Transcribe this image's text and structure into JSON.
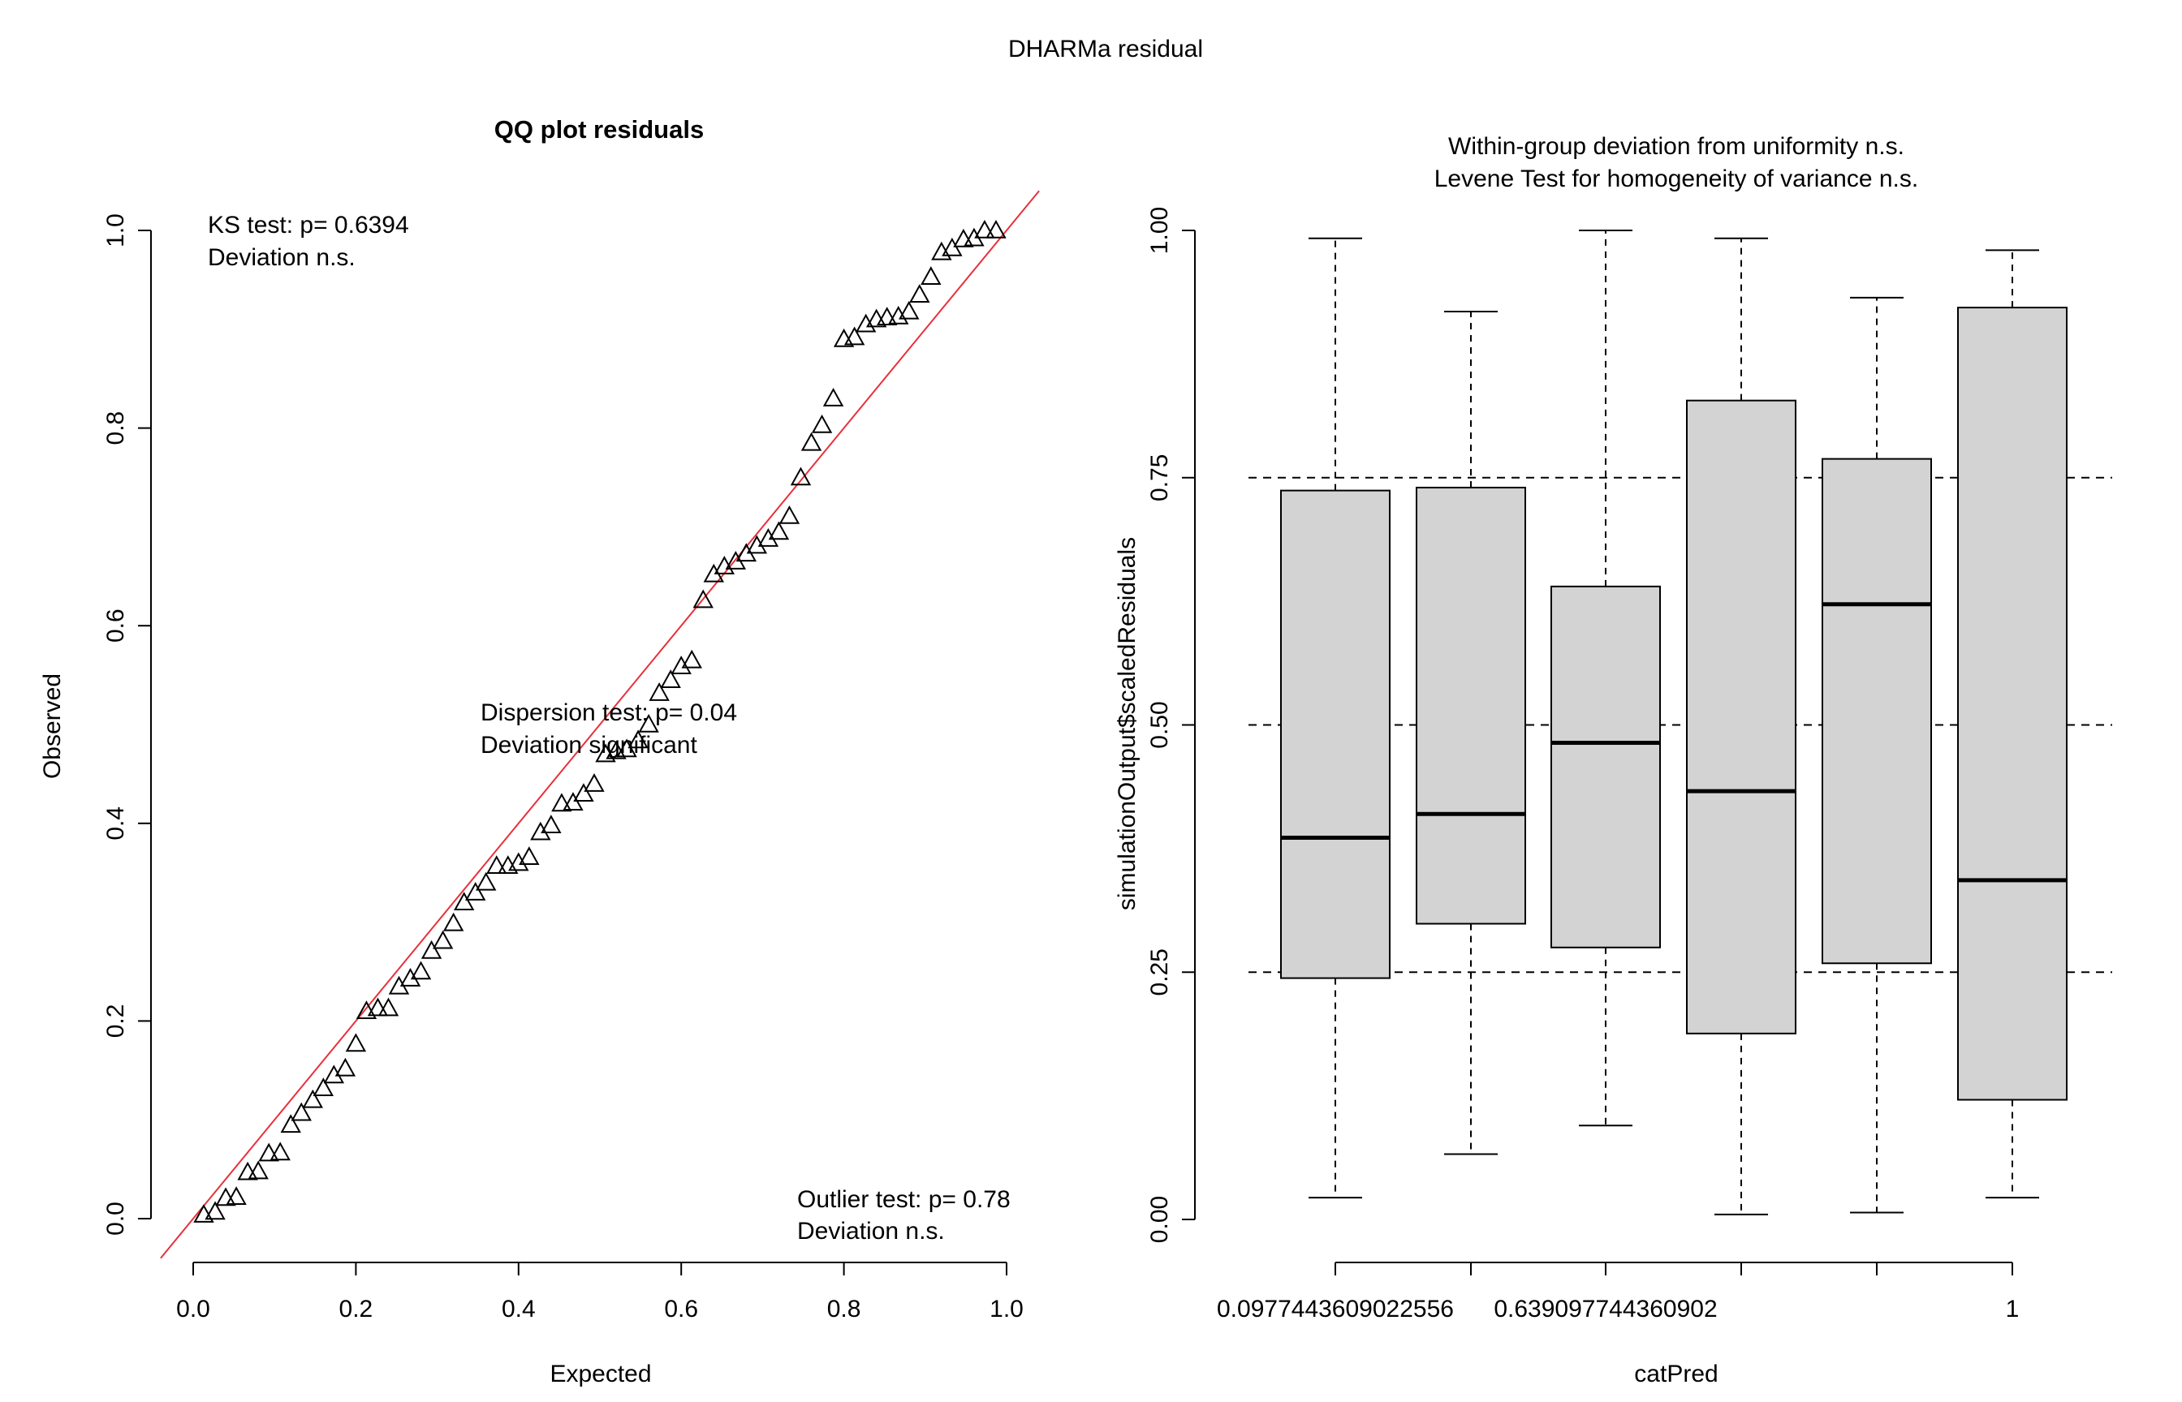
{
  "figure": {
    "title": "DHARMa residual"
  },
  "chart_data": [
    {
      "type": "scatter",
      "title": "QQ plot residuals",
      "xlabel": "Expected",
      "ylabel": "Observed",
      "xlim": [
        0,
        1
      ],
      "ylim": [
        0,
        1
      ],
      "x_ticks": [
        "0.0",
        "0.2",
        "0.4",
        "0.6",
        "0.8",
        "1.0"
      ],
      "y_ticks": [
        "0.0",
        "0.2",
        "0.4",
        "0.6",
        "0.8",
        "1.0"
      ],
      "marker": "triangle",
      "reference_line": {
        "from": [
          0,
          0
        ],
        "to": [
          1,
          1
        ],
        "color": "#e8303b"
      },
      "annotations": {
        "ks_line1": "KS test: p= 0.6394",
        "ks_line2": "Deviation  n.s.",
        "dispersion_line1": "Dispersion test: p= 0.04",
        "dispersion_line2": "Deviation  significant",
        "dispersion_color": "#ff0000",
        "outlier_line1": "Outlier test: p= 0.78",
        "outlier_line2": "Deviation  n.s."
      },
      "x": [
        0.013,
        0.027,
        0.04,
        0.053,
        0.067,
        0.08,
        0.093,
        0.107,
        0.12,
        0.133,
        0.147,
        0.16,
        0.173,
        0.187,
        0.2,
        0.213,
        0.227,
        0.24,
        0.253,
        0.267,
        0.28,
        0.293,
        0.307,
        0.32,
        0.333,
        0.347,
        0.36,
        0.373,
        0.387,
        0.4,
        0.413,
        0.427,
        0.44,
        0.453,
        0.467,
        0.48,
        0.493,
        0.507,
        0.52,
        0.533,
        0.547,
        0.56,
        0.573,
        0.587,
        0.6,
        0.613,
        0.627,
        0.64,
        0.653,
        0.667,
        0.68,
        0.693,
        0.707,
        0.72,
        0.733,
        0.747,
        0.76,
        0.773,
        0.787,
        0.8,
        0.813,
        0.827,
        0.84,
        0.853,
        0.867,
        0.88,
        0.893,
        0.907,
        0.92,
        0.933,
        0.947,
        0.96,
        0.973,
        0.987
      ],
      "y": [
        0.004,
        0.007,
        0.021,
        0.022,
        0.047,
        0.048,
        0.066,
        0.067,
        0.095,
        0.107,
        0.12,
        0.132,
        0.145,
        0.152,
        0.177,
        0.21,
        0.213,
        0.213,
        0.235,
        0.243,
        0.25,
        0.271,
        0.281,
        0.299,
        0.32,
        0.33,
        0.34,
        0.357,
        0.357,
        0.36,
        0.366,
        0.391,
        0.398,
        0.42,
        0.421,
        0.43,
        0.44,
        0.47,
        0.473,
        0.475,
        0.484,
        0.5,
        0.532,
        0.545,
        0.559,
        0.565,
        0.626,
        0.652,
        0.66,
        0.665,
        0.673,
        0.681,
        0.688,
        0.695,
        0.711,
        0.75,
        0.785,
        0.803,
        0.83,
        0.89,
        0.892,
        0.905,
        0.91,
        0.912,
        0.913,
        0.918,
        0.935,
        0.953,
        0.978,
        0.982,
        0.991,
        0.992,
        1.0,
        1.0
      ]
    },
    {
      "type": "box",
      "title_line1": "Within-group deviation from uniformity n.s.",
      "title_line2": "Levene Test for homogeneity of variance n.s.",
      "xlabel": "catPred",
      "ylabel": "simulationOutput$scaledResiduals",
      "ylim": [
        0,
        1
      ],
      "y_ticks": [
        "0.00",
        "0.25",
        "0.50",
        "0.75",
        "1.00"
      ],
      "hlines": [
        0.25,
        0.5,
        0.75
      ],
      "box_fill": "#d3d3d3",
      "x_labels": [
        "0.0977443609022556",
        "",
        "0.639097744360902",
        "",
        "",
        "1"
      ],
      "boxes": [
        {
          "min": 0.022,
          "q1": 0.244,
          "median": 0.386,
          "q3": 0.737,
          "max": 0.992
        },
        {
          "min": 0.066,
          "q1": 0.299,
          "median": 0.41,
          "q3": 0.74,
          "max": 0.918
        },
        {
          "min": 0.095,
          "q1": 0.275,
          "median": 0.482,
          "q3": 0.64,
          "max": 1.0
        },
        {
          "min": 0.005,
          "q1": 0.188,
          "median": 0.433,
          "q3": 0.828,
          "max": 0.992
        },
        {
          "min": 0.007,
          "q1": 0.259,
          "median": 0.622,
          "q3": 0.769,
          "max": 0.932
        },
        {
          "min": 0.022,
          "q1": 0.121,
          "median": 0.343,
          "q3": 0.922,
          "max": 0.98
        }
      ]
    }
  ]
}
